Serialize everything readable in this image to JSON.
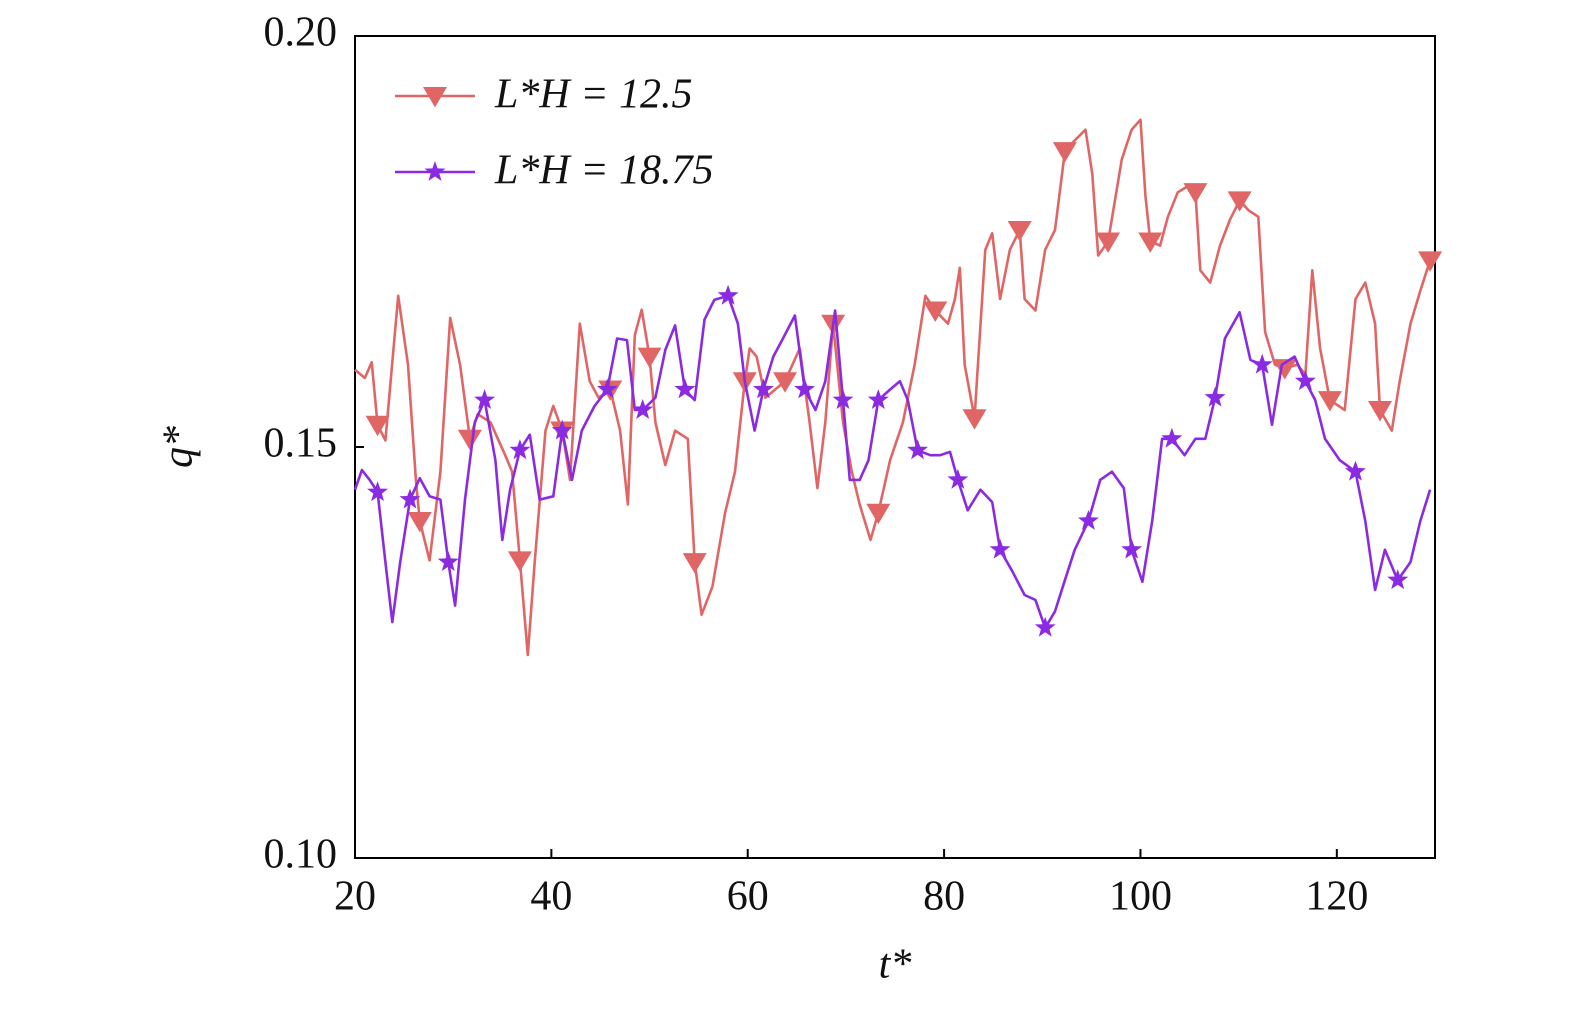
{
  "chart_data": {
    "type": "line",
    "xlabel": "t*",
    "ylabel": "q*",
    "xlim": [
      20,
      130
    ],
    "ylim": [
      0.1,
      0.2
    ],
    "xticks": [
      20,
      40,
      60,
      80,
      100,
      120
    ],
    "yticks": [
      {
        "value": 0.1,
        "label": "0.10"
      },
      0.15,
      {
        "value": 0.2,
        "label": "0.20"
      }
    ],
    "legend": "upper left",
    "series": [
      {
        "name": "L*H = 12.5",
        "color": "#e06666",
        "marker": "triangle-down",
        "x": [
          20.0,
          21.0,
          21.7,
          22.3,
          23.1,
          24.4,
          25.4,
          26.2,
          26.6,
          27.6,
          28.7,
          29.7,
          30.7,
          31.7,
          32.5,
          33.8,
          35.3,
          36.0,
          36.8,
          37.6,
          38.3,
          39.4,
          40.2,
          41.1,
          41.9,
          42.9,
          43.9,
          44.8,
          46.0,
          47.0,
          47.8,
          48.5,
          49.2,
          50.0,
          50.6,
          51.6,
          52.6,
          53.9,
          54.6,
          55.3,
          56.4,
          57.7,
          58.7,
          59.7,
          60.2,
          60.9,
          61.8,
          62.8,
          63.8,
          65.3,
          66.3,
          67.1,
          67.9,
          68.7,
          69.7,
          70.6,
          71.4,
          72.5,
          73.3,
          74.5,
          75.8,
          77.0,
          78.1,
          79.1,
          80.4,
          81.1,
          81.6,
          82.1,
          83.1,
          84.2,
          84.9,
          85.7,
          86.7,
          87.7,
          88.2,
          89.3,
          90.3,
          91.3,
          92.3,
          93.3,
          94.4,
          95.1,
          95.7,
          96.7,
          98.1,
          99.1,
          100.0,
          100.5,
          101.0,
          102.0,
          102.8,
          103.8,
          104.8,
          105.6,
          106.1,
          107.1,
          108.1,
          109.1,
          110.1,
          111.0,
          112.0,
          112.7,
          113.7,
          114.7,
          116.0,
          116.8,
          117.5,
          118.3,
          119.3,
          120.8,
          121.9,
          122.9,
          123.9,
          124.4,
          125.6,
          126.4,
          127.5,
          128.5,
          129.5
        ],
        "values": [
          0.1594,
          0.1584,
          0.1603,
          0.1527,
          0.1508,
          0.1684,
          0.16,
          0.146,
          0.141,
          0.1362,
          0.147,
          0.1657,
          0.16,
          0.151,
          0.154,
          0.153,
          0.149,
          0.147,
          0.1362,
          0.1247,
          0.136,
          0.152,
          0.155,
          0.152,
          0.146,
          0.165,
          0.158,
          0.156,
          0.157,
          0.152,
          0.143,
          0.1636,
          0.1667,
          0.161,
          0.153,
          0.1478,
          0.152,
          0.151,
          0.136,
          0.1296,
          0.133,
          0.142,
          0.147,
          0.158,
          0.162,
          0.161,
          0.156,
          0.157,
          0.158,
          0.162,
          0.153,
          0.145,
          0.153,
          0.165,
          0.153,
          0.147,
          0.143,
          0.1387,
          0.142,
          0.1484,
          0.153,
          0.16,
          0.1684,
          0.1666,
          0.165,
          0.168,
          0.1718,
          0.16,
          0.1535,
          0.174,
          0.176,
          0.168,
          0.174,
          0.1764,
          0.168,
          0.1666,
          0.174,
          0.1764,
          0.186,
          0.1873,
          0.1886,
          0.1832,
          0.1733,
          0.175,
          0.185,
          0.1886,
          0.1898,
          0.1806,
          0.175,
          0.1745,
          0.178,
          0.181,
          0.1817,
          0.181,
          0.1715,
          0.17,
          0.1745,
          0.1776,
          0.18,
          0.1788,
          0.178,
          0.164,
          0.16,
          0.1596,
          0.16,
          0.1588,
          0.1715,
          0.162,
          0.1557,
          0.1545,
          0.168,
          0.17,
          0.165,
          0.1545,
          0.152,
          0.158,
          0.165,
          0.169,
          0.1727
        ]
      },
      {
        "name": "L*H = 18.75",
        "color": "#8a2be2",
        "marker": "star",
        "x": [
          20.0,
          20.7,
          21.5,
          22.3,
          23.1,
          23.8,
          24.6,
          25.6,
          26.6,
          27.6,
          28.7,
          29.5,
          30.2,
          31.2,
          32.2,
          33.2,
          34.3,
          35.0,
          35.8,
          36.8,
          37.8,
          38.8,
          40.2,
          41.1,
          42.1,
          43.1,
          44.4,
          45.7,
          46.7,
          47.7,
          48.5,
          49.3,
          50.6,
          51.6,
          52.6,
          53.6,
          54.6,
          55.6,
          56.6,
          58.0,
          59.0,
          59.7,
          60.7,
          61.6,
          62.6,
          63.5,
          64.8,
          65.8,
          66.9,
          67.9,
          68.9,
          69.7,
          70.4,
          71.4,
          72.3,
          73.3,
          74.5,
          75.5,
          76.3,
          77.3,
          78.6,
          79.6,
          80.6,
          81.4,
          82.4,
          83.7,
          84.9,
          85.7,
          86.9,
          88.2,
          89.3,
          90.3,
          91.3,
          92.3,
          93.3,
          94.7,
          95.9,
          97.1,
          98.3,
          99.1,
          100.2,
          101.2,
          102.2,
          103.2,
          104.5,
          105.6,
          106.6,
          107.6,
          108.6,
          110.1,
          111.2,
          112.4,
          113.4,
          114.4,
          115.7,
          116.8,
          117.8,
          118.8,
          120.3,
          121.9,
          122.9,
          123.9,
          124.9,
          126.2,
          127.5,
          128.5,
          129.5
        ],
        "values": [
          0.1448,
          0.1472,
          0.146,
          0.1445,
          0.136,
          0.1287,
          0.136,
          0.1436,
          0.1462,
          0.144,
          0.1436,
          0.136,
          0.1307,
          0.1436,
          0.153,
          0.1557,
          0.1484,
          0.1387,
          0.1448,
          0.1496,
          0.1515,
          0.1436,
          0.144,
          0.152,
          0.146,
          0.152,
          0.155,
          0.157,
          0.1632,
          0.163,
          0.1545,
          0.1545,
          0.156,
          0.1618,
          0.1648,
          0.157,
          0.1557,
          0.1655,
          0.1679,
          0.1684,
          0.165,
          0.158,
          0.152,
          0.157,
          0.161,
          0.163,
          0.166,
          0.157,
          0.1545,
          0.158,
          0.1666,
          0.1557,
          0.146,
          0.146,
          0.1484,
          0.1557,
          0.157,
          0.158,
          0.1557,
          0.1496,
          0.149,
          0.149,
          0.1494,
          0.146,
          0.1423,
          0.1448,
          0.1433,
          0.1375,
          0.135,
          0.132,
          0.1314,
          0.128,
          0.13,
          0.1338,
          0.1375,
          0.141,
          0.146,
          0.147,
          0.145,
          0.1375,
          0.1336,
          0.141,
          0.151,
          0.151,
          0.149,
          0.151,
          0.151,
          0.156,
          0.1632,
          0.1664,
          0.1606,
          0.16,
          0.1527,
          0.16,
          0.161,
          0.158,
          0.1557,
          0.151,
          0.1484,
          0.147,
          0.141,
          0.1326,
          0.1375,
          0.1338,
          0.136,
          0.141,
          0.1448
        ]
      }
    ]
  }
}
